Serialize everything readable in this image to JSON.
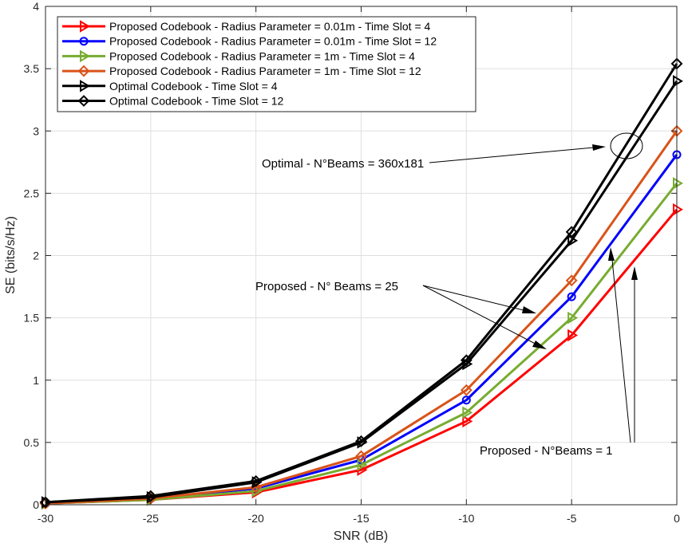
{
  "chart_data": {
    "type": "line",
    "title": "",
    "xlabel": "SNR (dB)",
    "ylabel": "SE (bits/s/Hz)",
    "xlim": [
      -30,
      0
    ],
    "ylim": [
      0,
      4
    ],
    "xticks": [
      -30,
      -25,
      -20,
      -15,
      -10,
      -5,
      0
    ],
    "yticks": [
      0,
      0.5,
      1,
      1.5,
      2,
      2.5,
      3,
      3.5,
      4
    ],
    "xtick_labels": [
      "-30",
      "-25",
      "-20",
      "-15",
      "-10",
      "-5",
      "0"
    ],
    "ytick_labels": [
      "0",
      "0.5",
      "1",
      "1.5",
      "2",
      "2.5",
      "3",
      "3.5",
      "4"
    ],
    "grid": true,
    "legend_position": "top-left",
    "x": [
      -30,
      -25,
      -20,
      -15,
      -10,
      -5,
      0
    ],
    "series": [
      {
        "name": "Proposed Codebook - Radius Parameter = 0.01m - Time Slot = 4",
        "color": "#ff0000",
        "marker": "triangle-right",
        "values": [
          0.01,
          0.04,
          0.1,
          0.28,
          0.67,
          1.36,
          2.37
        ]
      },
      {
        "name": "Proposed Codebook - Radius Parameter = 0.01m - Time Slot = 12",
        "color": "#0000ff",
        "marker": "circle",
        "values": [
          0.01,
          0.05,
          0.13,
          0.36,
          0.84,
          1.67,
          2.81
        ]
      },
      {
        "name": "Proposed Codebook - Radius Parameter = 1m - Time Slot = 4",
        "color": "#77ac30",
        "marker": "triangle-right",
        "values": [
          0.01,
          0.04,
          0.11,
          0.32,
          0.74,
          1.5,
          2.58
        ]
      },
      {
        "name": "Proposed Codebook - Radius Parameter = 1m - Time Slot = 12",
        "color": "#d95319",
        "marker": "diamond",
        "values": [
          0.01,
          0.05,
          0.14,
          0.39,
          0.92,
          1.8,
          3.0
        ]
      },
      {
        "name": "Optimal Codebook - Time Slot = 4",
        "color": "#000000",
        "marker": "triangle-right",
        "values": [
          0.02,
          0.06,
          0.18,
          0.5,
          1.13,
          2.12,
          3.4
        ]
      },
      {
        "name": "Optimal Codebook - Time Slot = 12",
        "color": "#000000",
        "marker": "diamond",
        "values": [
          0.02,
          0.07,
          0.19,
          0.51,
          1.16,
          2.19,
          3.54
        ]
      }
    ],
    "annotations": [
      {
        "text": "Optimal - N°Beams = 360x181"
      },
      {
        "text": "Proposed - N° Beams = 25"
      },
      {
        "text": "Proposed - N°Beams = 1"
      }
    ]
  }
}
